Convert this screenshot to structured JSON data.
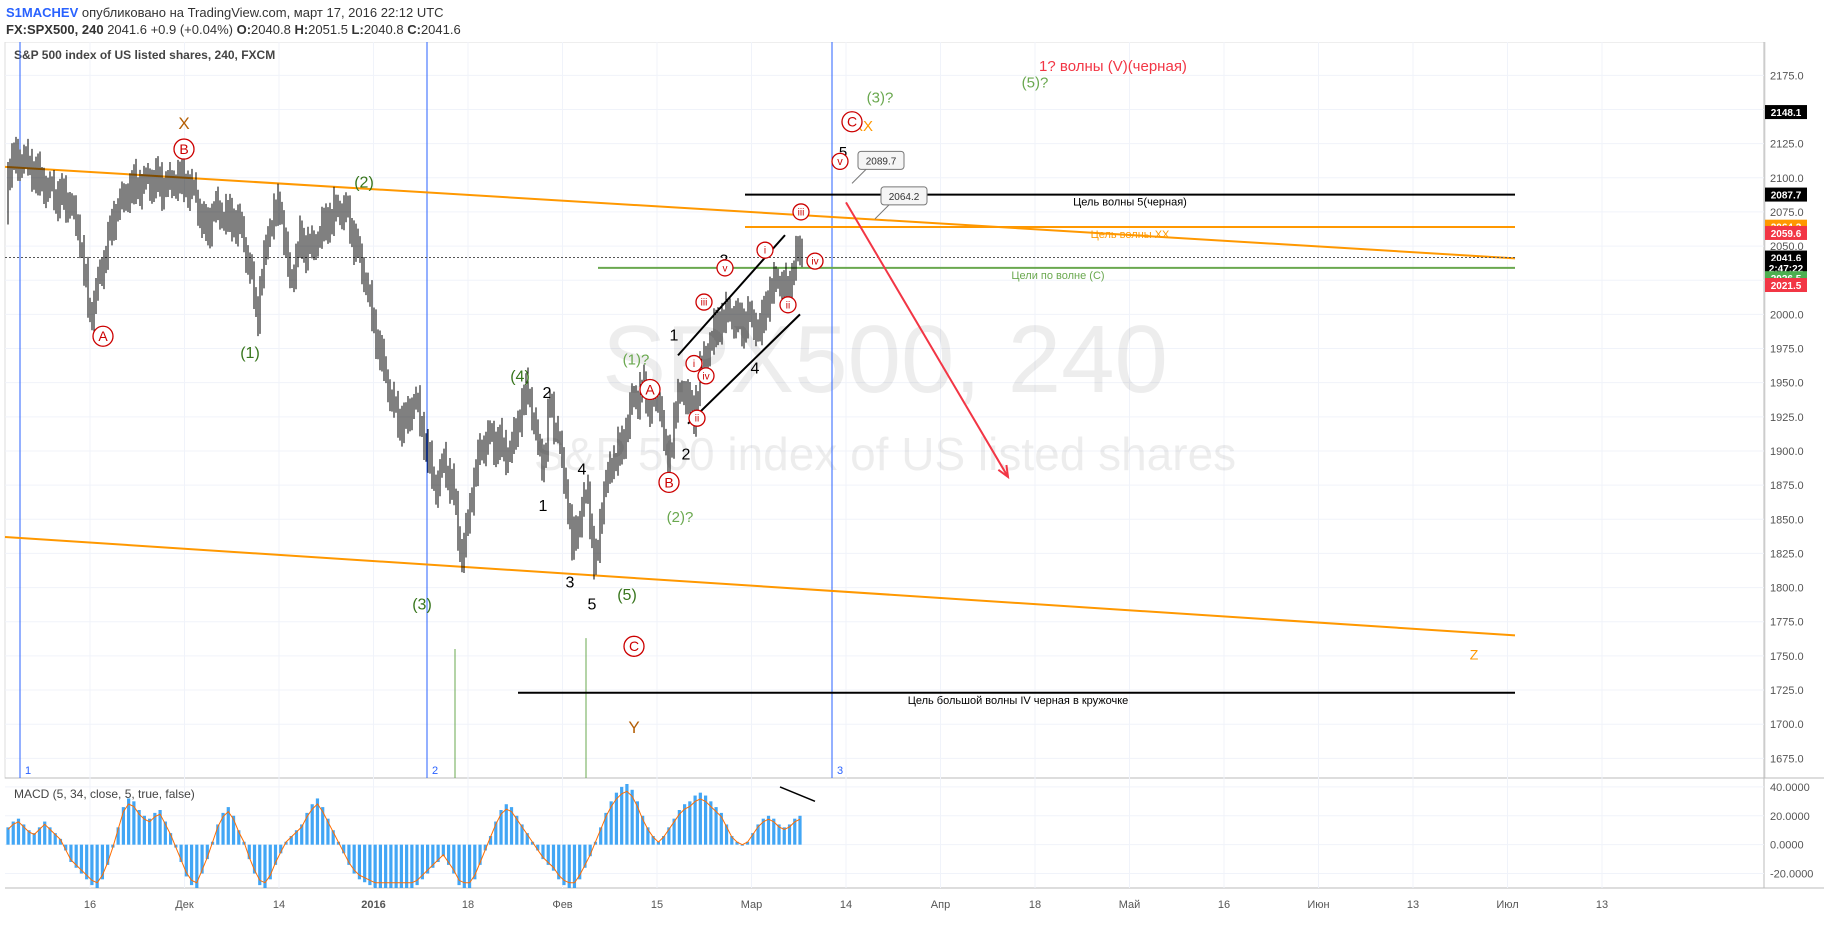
{
  "header": {
    "author": "S1MACHEV",
    "published_text": "опубликовано на TradingView.com, март 17, 2016 22:12 UTC",
    "symbol": "FX:SPX500, 240",
    "last": "2041.6",
    "change": "+0.9 (+0.04%)",
    "o_label": "O:",
    "o_value": "2040.8",
    "h_label": "H:",
    "h_value": "2051.5",
    "l_label": "L:",
    "l_value": "2040.8",
    "c_label": "C:",
    "c_value": "2041.6"
  },
  "chart_data": {
    "type": "candlestick",
    "title": "S&P 500 index of US listed shares, 240, FXCM",
    "watermark_line1": "SPX500, 240",
    "watermark_line2": "S&P 500 index of US listed shares",
    "y_ticks": [
      1675,
      1700,
      1725,
      1750,
      1775,
      1800,
      1825,
      1850,
      1875,
      1900,
      1925,
      1950,
      1975,
      2000,
      2025,
      2050,
      2075,
      2100,
      2125,
      2150,
      2175
    ],
    "ylim": [
      1665,
      2195
    ],
    "x_ticks": [
      "16",
      "Дек",
      "14",
      "2016",
      "18",
      "Фев",
      "15",
      "Мар",
      "14",
      "Апр",
      "18",
      "Май",
      "16",
      "Июн",
      "13",
      "Июл",
      "13"
    ],
    "price_tags": [
      {
        "value": 2148.1,
        "label": "2148.1",
        "color": "#000000"
      },
      {
        "value": 2087.7,
        "label": "2087.7",
        "color": "#000000"
      },
      {
        "value": 2064.2,
        "label": "2064.2",
        "color": "#ff9800"
      },
      {
        "value": 2059.6,
        "label": "2059.6",
        "color": "#f23645"
      },
      {
        "value": 2041.6,
        "label": "2041.6",
        "color": "#000000"
      },
      {
        "value": 2034.0,
        "label": "2:47:22",
        "color": "#000000"
      },
      {
        "value": 2026.5,
        "label": "2026.5",
        "color": "#4caf50"
      },
      {
        "value": 2021.5,
        "label": "2021.5",
        "color": "#f23645"
      }
    ],
    "price_path": [
      [
        0,
        2075
      ],
      [
        10,
        2108
      ],
      [
        25,
        2112
      ],
      [
        40,
        2098
      ],
      [
        55,
        2090
      ],
      [
        70,
        2085
      ],
      [
        80,
        2060
      ],
      [
        90,
        2000
      ],
      [
        100,
        2030
      ],
      [
        115,
        2075
      ],
      [
        130,
        2090
      ],
      [
        150,
        2095
      ],
      [
        165,
        2092
      ],
      [
        180,
        2098
      ],
      [
        195,
        2090
      ],
      [
        205,
        2062
      ],
      [
        215,
        2080
      ],
      [
        225,
        2075
      ],
      [
        240,
        2068
      ],
      [
        250,
        2035
      ],
      [
        257,
        2000
      ],
      [
        268,
        2060
      ],
      [
        280,
        2080
      ],
      [
        290,
        2020
      ],
      [
        300,
        2050
      ],
      [
        312,
        2045
      ],
      [
        322,
        2060
      ],
      [
        335,
        2075
      ],
      [
        345,
        2078
      ],
      [
        355,
        2055
      ],
      [
        365,
        2030
      ],
      [
        375,
        1990
      ],
      [
        385,
        1960
      ],
      [
        395,
        1930
      ],
      [
        405,
        1920
      ],
      [
        415,
        1940
      ],
      [
        425,
        1905
      ],
      [
        435,
        1870
      ],
      [
        445,
        1890
      ],
      [
        455,
        1860
      ],
      [
        462,
        1815
      ],
      [
        470,
        1860
      ],
      [
        480,
        1900
      ],
      [
        490,
        1910
      ],
      [
        500,
        1905
      ],
      [
        510,
        1900
      ],
      [
        520,
        1930
      ],
      [
        528,
        1950
      ],
      [
        538,
        1905
      ],
      [
        545,
        1895
      ],
      [
        550,
        1940
      ],
      [
        558,
        1910
      ],
      [
        565,
        1880
      ],
      [
        572,
        1830
      ],
      [
        580,
        1850
      ],
      [
        588,
        1870
      ],
      [
        595,
        1805
      ],
      [
        602,
        1860
      ],
      [
        612,
        1890
      ],
      [
        622,
        1900
      ],
      [
        632,
        1935
      ],
      [
        642,
        1945
      ],
      [
        652,
        1935
      ],
      [
        660,
        1940
      ],
      [
        668,
        1885
      ],
      [
        675,
        1935
      ],
      [
        685,
        1950
      ],
      [
        693,
        1925
      ],
      [
        700,
        1960
      ],
      [
        710,
        1980
      ],
      [
        720,
        1995
      ],
      [
        730,
        2000
      ],
      [
        740,
        1990
      ],
      [
        750,
        1995
      ],
      [
        760,
        1985
      ],
      [
        768,
        2010
      ],
      [
        778,
        2025
      ],
      [
        788,
        2015
      ],
      [
        795,
        2040
      ],
      [
        802,
        2050
      ]
    ],
    "lines": [
      {
        "name": "upper-channel",
        "from": [
          5,
          2108
        ],
        "to": [
          1515,
          2041
        ],
        "color": "#ff9800"
      },
      {
        "name": "lower-channel",
        "from": [
          5,
          1837
        ],
        "to": [
          1515,
          1765
        ],
        "color": "#ff9800"
      },
      {
        "name": "orange-target",
        "from": [
          745,
          2064
        ],
        "to": [
          1515,
          2064
        ],
        "color": "#ff9800"
      },
      {
        "name": "black-target",
        "from": [
          745,
          2087.7
        ],
        "to": [
          1515,
          2087.7
        ],
        "color": "#000000"
      },
      {
        "name": "green-target",
        "from": [
          598,
          2034
        ],
        "to": [
          1515,
          2034
        ],
        "color": "#6aa84f"
      },
      {
        "name": "big-wave-target",
        "from": [
          518,
          1723
        ],
        "to": [
          1515,
          1723
        ],
        "color": "#000000"
      },
      {
        "name": "channel-up-1",
        "from": [
          678,
          1970
        ],
        "to": [
          785,
          2058
        ],
        "color": "#000000"
      },
      {
        "name": "channel-up-2",
        "from": [
          688,
          1920
        ],
        "to": [
          800,
          2000
        ],
        "color": "#000000"
      },
      {
        "name": "current-price",
        "from": [
          5,
          2041.6
        ],
        "to": [
          1515,
          2041.6
        ],
        "color": "#555555",
        "dashed": true
      }
    ],
    "vlines": [
      {
        "x": 20,
        "label": "1"
      },
      {
        "x": 427,
        "label": "2"
      },
      {
        "x": 832,
        "label": "3"
      }
    ],
    "target_texts": [
      {
        "text": "Цель волны 5(черная)",
        "x": 1130,
        "y": 2082,
        "color": "#000000"
      },
      {
        "text": "Цель волны XX",
        "x": 1130,
        "y": 2058,
        "color": "#ff9800"
      },
      {
        "text": "Цели по волне (С)",
        "x": 1058,
        "y": 2028,
        "color": "#6aa84f"
      },
      {
        "text": "Цель большой волны IV черная в кружочке",
        "x": 1018,
        "y": 1717,
        "color": "#000000"
      }
    ],
    "callouts": [
      {
        "label": "2089.7",
        "x": 880,
        "y": 2112
      },
      {
        "label": "2064.2",
        "x": 903,
        "y": 2086
      }
    ],
    "wave_labels": [
      {
        "text": "1? волны (V)(черная)",
        "x": 1113,
        "y": 2182,
        "color": "#f23645",
        "size": 15
      },
      {
        "text": "(5)?",
        "x": 1035,
        "y": 2170,
        "color": "#6aa84f",
        "size": 15
      },
      {
        "text": "(3)?",
        "x": 880,
        "y": 2159,
        "color": "#6aa84f",
        "size": 15
      },
      {
        "text": "XX",
        "x": 863,
        "y": 2138,
        "color": "#ff9800",
        "size": 15
      },
      {
        "text": "5",
        "x": 843,
        "y": 2119,
        "color": "#000000",
        "size": 15
      },
      {
        "text": "X",
        "x": 184,
        "y": 2140,
        "color": "#b45f06",
        "size": 17
      },
      {
        "text": "(2)",
        "x": 364,
        "y": 2097,
        "color": "#38761d",
        "size": 16
      },
      {
        "text": "(1)",
        "x": 250,
        "y": 1972,
        "color": "#38761d",
        "size": 16
      },
      {
        "text": "(4)",
        "x": 520,
        "y": 1955,
        "color": "#38761d",
        "size": 16
      },
      {
        "text": "(3)",
        "x": 422,
        "y": 1788,
        "color": "#38761d",
        "size": 16
      },
      {
        "text": "(5)",
        "x": 627,
        "y": 1795,
        "color": "#38761d",
        "size": 16
      },
      {
        "text": "(1)?",
        "x": 636,
        "y": 1967,
        "color": "#6aa84f",
        "size": 15
      },
      {
        "text": "(2)?",
        "x": 680,
        "y": 1852,
        "color": "#6aa84f",
        "size": 15
      },
      {
        "text": "Y",
        "x": 634,
        "y": 1698,
        "color": "#b45f06",
        "size": 17
      },
      {
        "text": "Z",
        "x": 1474,
        "y": 1751,
        "color": "#ff9800",
        "size": 14
      },
      {
        "text": "2",
        "x": 547,
        "y": 1943,
        "color": "#000000",
        "size": 16
      },
      {
        "text": "1",
        "x": 543,
        "y": 1860,
        "color": "#000000",
        "size": 16
      },
      {
        "text": "4",
        "x": 582,
        "y": 1887,
        "color": "#000000",
        "size": 16
      },
      {
        "text": "3",
        "x": 570,
        "y": 1804,
        "color": "#000000",
        "size": 16
      },
      {
        "text": "5",
        "x": 592,
        "y": 1788,
        "color": "#000000",
        "size": 16
      },
      {
        "text": "1",
        "x": 674,
        "y": 1985,
        "color": "#000000",
        "size": 16
      },
      {
        "text": "2",
        "x": 686,
        "y": 1898,
        "color": "#000000",
        "size": 16
      },
      {
        "text": "3",
        "x": 724,
        "y": 2040,
        "color": "#000000",
        "size": 16
      },
      {
        "text": "4",
        "x": 755,
        "y": 1961,
        "color": "#000000",
        "size": 16
      }
    ],
    "circle_labels": [
      {
        "text": "A",
        "x": 103,
        "y": 1984,
        "r": 10,
        "size": 14
      },
      {
        "text": "B",
        "x": 184,
        "y": 2121,
        "r": 10,
        "size": 14
      },
      {
        "text": "A",
        "x": 650,
        "y": 1945,
        "r": 10,
        "size": 14
      },
      {
        "text": "B",
        "x": 669,
        "y": 1877,
        "r": 10,
        "size": 14
      },
      {
        "text": "C",
        "x": 634,
        "y": 1757,
        "r": 10,
        "size": 14
      },
      {
        "text": "C",
        "x": 852,
        "y": 2141,
        "r": 10,
        "size": 14
      },
      {
        "text": "v",
        "x": 840,
        "y": 2112,
        "r": 8,
        "size": 11
      },
      {
        "text": "iii",
        "x": 801,
        "y": 2075,
        "r": 8,
        "size": 10
      },
      {
        "text": "i",
        "x": 765,
        "y": 2047,
        "r": 8,
        "size": 10
      },
      {
        "text": "v",
        "x": 725,
        "y": 2034,
        "r": 8,
        "size": 10
      },
      {
        "text": "iv",
        "x": 815,
        "y": 2039,
        "r": 8,
        "size": 10
      },
      {
        "text": "ii",
        "x": 788,
        "y": 2007,
        "r": 8,
        "size": 10
      },
      {
        "text": "iii",
        "x": 704,
        "y": 2009,
        "r": 8,
        "size": 10
      },
      {
        "text": "i",
        "x": 694,
        "y": 1964,
        "r": 8,
        "size": 10
      },
      {
        "text": "iv",
        "x": 706,
        "y": 1955,
        "r": 8,
        "size": 10
      },
      {
        "text": "ii",
        "x": 697,
        "y": 1924,
        "r": 8,
        "size": 10
      }
    ],
    "arrow": {
      "from": [
        846,
        2082
      ],
      "to": [
        1008,
        1881
      ],
      "color": "#f23645"
    },
    "volume_spikes": [
      {
        "x": 455,
        "top": 1755
      },
      {
        "x": 586,
        "top": 1763
      }
    ],
    "macd": {
      "title": "MACD (5, 34, close, 5, true, false)",
      "y_ticks": [
        40,
        20,
        0,
        -20
      ],
      "ylim": [
        -30,
        42
      ],
      "tick_labels": [
        "40.0000",
        "20.0000",
        "0.0000",
        "-20.0000"
      ],
      "values": [
        12,
        16,
        18,
        14,
        10,
        8,
        12,
        16,
        12,
        8,
        4,
        -4,
        -12,
        -16,
        -20,
        -24,
        -28,
        -30,
        -24,
        -14,
        -2,
        12,
        26,
        32,
        30,
        24,
        20,
        18,
        22,
        24,
        16,
        8,
        -2,
        -12,
        -22,
        -28,
        -30,
        -20,
        -10,
        2,
        14,
        22,
        26,
        20,
        10,
        2,
        -10,
        -20,
        -28,
        -30,
        -24,
        -14,
        -6,
        2,
        6,
        10,
        14,
        22,
        28,
        32,
        26,
        18,
        10,
        2,
        -6,
        -14,
        -20,
        -24,
        -26,
        -28,
        -30,
        -30,
        -30,
        -30,
        -30,
        -30,
        -30,
        -30,
        -28,
        -24,
        -20,
        -16,
        -12,
        -8,
        -14,
        -20,
        -28,
        -30,
        -30,
        -24,
        -14,
        -4,
        6,
        16,
        24,
        28,
        26,
        20,
        14,
        8,
        2,
        -4,
        -10,
        -14,
        -18,
        -24,
        -28,
        -30,
        -30,
        -24,
        -16,
        -8,
        2,
        12,
        22,
        30,
        36,
        40,
        42,
        38,
        30,
        20,
        12,
        6,
        2,
        6,
        12,
        18,
        24,
        28,
        30,
        34,
        36,
        34,
        30,
        26,
        22,
        14,
        6,
        2,
        0,
        2,
        8,
        14,
        18,
        20,
        18,
        14,
        12,
        14,
        18,
        20
      ]
    }
  }
}
